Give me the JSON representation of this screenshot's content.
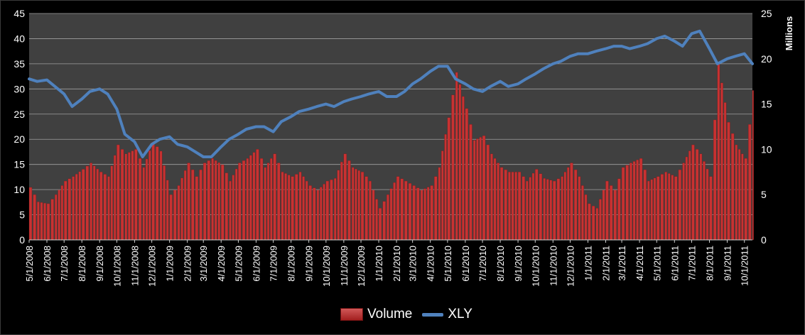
{
  "chart_data": {
    "type": "bar+line",
    "series": [
      {
        "name": "Volume",
        "type": "bar",
        "axis": "right",
        "color": "#c83232",
        "points": [
          [
            "5/1/2008",
            5.8
          ],
          [
            "5/15/2008",
            4.2
          ],
          [
            "6/1/2008",
            4.0
          ],
          [
            "6/15/2008",
            5.0
          ],
          [
            "7/1/2008",
            6.5
          ],
          [
            "7/15/2008",
            7.0
          ],
          [
            "8/1/2008",
            7.8
          ],
          [
            "8/15/2008",
            8.5
          ],
          [
            "9/1/2008",
            7.5
          ],
          [
            "9/15/2008",
            7.0
          ],
          [
            "10/1/2008",
            10.5
          ],
          [
            "10/15/2008",
            9.5
          ],
          [
            "11/1/2008",
            10.0
          ],
          [
            "11/15/2008",
            8.0
          ],
          [
            "12/1/2008",
            10.8
          ],
          [
            "12/15/2008",
            9.8
          ],
          [
            "1/1/2009",
            5.0
          ],
          [
            "1/15/2009",
            6.0
          ],
          [
            "2/1/2009",
            8.5
          ],
          [
            "2/15/2009",
            7.0
          ],
          [
            "3/1/2009",
            8.5
          ],
          [
            "3/15/2009",
            9.0
          ],
          [
            "4/1/2009",
            8.3
          ],
          [
            "4/15/2009",
            6.5
          ],
          [
            "5/1/2009",
            8.5
          ],
          [
            "5/15/2009",
            9.0
          ],
          [
            "6/1/2009",
            10.0
          ],
          [
            "6/15/2009",
            8.0
          ],
          [
            "7/1/2009",
            9.5
          ],
          [
            "7/15/2009",
            7.5
          ],
          [
            "8/1/2009",
            7.0
          ],
          [
            "8/15/2009",
            7.5
          ],
          [
            "9/1/2009",
            6.0
          ],
          [
            "9/15/2009",
            5.5
          ],
          [
            "10/1/2009",
            6.5
          ],
          [
            "10/15/2009",
            6.8
          ],
          [
            "11/1/2009",
            9.5
          ],
          [
            "11/15/2009",
            8.0
          ],
          [
            "12/1/2009",
            7.5
          ],
          [
            "12/15/2009",
            6.5
          ],
          [
            "1/1/2010",
            3.5
          ],
          [
            "1/15/2010",
            5.0
          ],
          [
            "2/1/2010",
            7.0
          ],
          [
            "2/15/2010",
            6.5
          ],
          [
            "3/1/2010",
            6.0
          ],
          [
            "3/15/2010",
            5.5
          ],
          [
            "4/1/2010",
            6.0
          ],
          [
            "4/15/2010",
            8.0
          ],
          [
            "5/1/2010",
            13.5
          ],
          [
            "5/15/2010",
            18.5
          ],
          [
            "6/1/2010",
            14.5
          ],
          [
            "6/15/2010",
            11.0
          ],
          [
            "7/1/2010",
            11.5
          ],
          [
            "7/15/2010",
            9.5
          ],
          [
            "8/1/2010",
            8.0
          ],
          [
            "8/15/2010",
            7.5
          ],
          [
            "9/1/2010",
            7.5
          ],
          [
            "9/15/2010",
            6.5
          ],
          [
            "10/1/2010",
            7.8
          ],
          [
            "10/15/2010",
            6.8
          ],
          [
            "11/1/2010",
            6.5
          ],
          [
            "11/15/2010",
            7.0
          ],
          [
            "12/1/2010",
            8.5
          ],
          [
            "12/15/2010",
            7.0
          ],
          [
            "1/1/2011",
            4.0
          ],
          [
            "1/15/2011",
            3.5
          ],
          [
            "2/1/2011",
            6.5
          ],
          [
            "2/15/2011",
            5.5
          ],
          [
            "3/1/2011",
            8.0
          ],
          [
            "3/15/2011",
            8.5
          ],
          [
            "4/1/2011",
            9.0
          ],
          [
            "4/15/2011",
            6.5
          ],
          [
            "5/1/2011",
            7.0
          ],
          [
            "5/15/2011",
            7.5
          ],
          [
            "6/1/2011",
            7.0
          ],
          [
            "6/15/2011",
            8.5
          ],
          [
            "7/1/2011",
            10.5
          ],
          [
            "7/15/2011",
            9.5
          ],
          [
            "8/1/2011",
            7.0
          ],
          [
            "8/15/2011",
            19.5
          ],
          [
            "9/1/2011",
            13.0
          ],
          [
            "9/15/2011",
            10.5
          ],
          [
            "10/1/2011",
            9.0
          ],
          [
            "10/15/2011",
            16.5
          ]
        ]
      },
      {
        "name": "XLY",
        "type": "line",
        "axis": "left",
        "color": "#4f81bd",
        "points": [
          [
            "5/1/2008",
            32
          ],
          [
            "5/15/2008",
            31.5
          ],
          [
            "6/1/2008",
            31.8
          ],
          [
            "6/15/2008",
            30.5
          ],
          [
            "7/1/2008",
            29.0
          ],
          [
            "7/15/2008",
            26.5
          ],
          [
            "8/1/2008",
            28.0
          ],
          [
            "8/15/2008",
            29.5
          ],
          [
            "9/1/2008",
            30.0
          ],
          [
            "9/15/2008",
            29.0
          ],
          [
            "10/1/2008",
            26.0
          ],
          [
            "10/15/2008",
            21.0
          ],
          [
            "11/1/2008",
            19.5
          ],
          [
            "11/15/2008",
            16.5
          ],
          [
            "12/1/2008",
            19.0
          ],
          [
            "12/15/2008",
            20.0
          ],
          [
            "1/1/2009",
            20.5
          ],
          [
            "1/15/2009",
            19.0
          ],
          [
            "2/1/2009",
            18.5
          ],
          [
            "2/15/2009",
            17.5
          ],
          [
            "3/1/2009",
            16.5
          ],
          [
            "3/15/2009",
            16.5
          ],
          [
            "4/1/2009",
            18.5
          ],
          [
            "4/15/2009",
            20.0
          ],
          [
            "5/1/2009",
            21.0
          ],
          [
            "5/15/2009",
            22.0
          ],
          [
            "6/1/2009",
            22.5
          ],
          [
            "6/15/2009",
            22.5
          ],
          [
            "7/1/2009",
            21.5
          ],
          [
            "7/15/2009",
            23.5
          ],
          [
            "8/1/2009",
            24.5
          ],
          [
            "8/15/2009",
            25.5
          ],
          [
            "9/1/2009",
            26.0
          ],
          [
            "9/15/2009",
            26.5
          ],
          [
            "10/1/2009",
            27.0
          ],
          [
            "10/15/2009",
            26.5
          ],
          [
            "11/1/2009",
            27.5
          ],
          [
            "11/15/2009",
            28.0
          ],
          [
            "12/1/2009",
            28.5
          ],
          [
            "12/15/2009",
            29.0
          ],
          [
            "1/1/2010",
            29.5
          ],
          [
            "1/15/2010",
            28.5
          ],
          [
            "2/1/2010",
            28.5
          ],
          [
            "2/15/2010",
            29.5
          ],
          [
            "3/1/2010",
            31.0
          ],
          [
            "3/15/2010",
            32.0
          ],
          [
            "4/1/2010",
            33.5
          ],
          [
            "4/15/2010",
            34.5
          ],
          [
            "5/1/2010",
            34.5
          ],
          [
            "5/15/2010",
            32.0
          ],
          [
            "6/1/2010",
            31.0
          ],
          [
            "6/15/2010",
            30.0
          ],
          [
            "7/1/2010",
            29.5
          ],
          [
            "7/15/2010",
            30.5
          ],
          [
            "8/1/2010",
            31.5
          ],
          [
            "8/15/2010",
            30.5
          ],
          [
            "9/1/2010",
            31.0
          ],
          [
            "9/15/2010",
            32.0
          ],
          [
            "10/1/2010",
            33.0
          ],
          [
            "10/15/2010",
            34.0
          ],
          [
            "11/1/2010",
            35.0
          ],
          [
            "11/15/2010",
            35.5
          ],
          [
            "12/1/2010",
            36.5
          ],
          [
            "12/15/2010",
            37.0
          ],
          [
            "1/1/2011",
            37.0
          ],
          [
            "1/15/2011",
            37.5
          ],
          [
            "2/1/2011",
            38.0
          ],
          [
            "2/15/2011",
            38.5
          ],
          [
            "3/1/2011",
            38.5
          ],
          [
            "3/15/2011",
            38.0
          ],
          [
            "4/1/2011",
            38.5
          ],
          [
            "4/15/2011",
            39.0
          ],
          [
            "5/1/2011",
            40.0
          ],
          [
            "5/15/2011",
            40.5
          ],
          [
            "6/1/2011",
            39.5
          ],
          [
            "6/15/2011",
            38.5
          ],
          [
            "7/1/2011",
            41.0
          ],
          [
            "7/15/2011",
            41.5
          ],
          [
            "8/1/2011",
            38.0
          ],
          [
            "8/15/2011",
            35.0
          ],
          [
            "9/1/2011",
            36.0
          ],
          [
            "9/15/2011",
            36.5
          ],
          [
            "10/1/2011",
            37.0
          ],
          [
            "10/15/2011",
            35.0
          ]
        ]
      }
    ],
    "y_left": {
      "min": 0,
      "max": 45,
      "ticks": [
        "0",
        "5",
        "10",
        "15",
        "20",
        "25",
        "30",
        "35",
        "40",
        "45"
      ]
    },
    "y_right": {
      "min": 0,
      "max": 25,
      "ticks": [
        "0",
        "5",
        "10",
        "15",
        "20",
        "25"
      ],
      "label": "Millions"
    },
    "x_ticks": [
      "5/1/2008",
      "6/1/2008",
      "7/1/2008",
      "8/1/2008",
      "9/1/2008",
      "10/1/2008",
      "11/1/2008",
      "12/1/2008",
      "1/1/2009",
      "2/1/2009",
      "3/1/2009",
      "4/1/2009",
      "5/1/2009",
      "6/1/2009",
      "7/1/2009",
      "8/1/2009",
      "9/1/2009",
      "10/1/2009",
      "11/1/2009",
      "12/1/2009",
      "1/1/2010",
      "2/1/2010",
      "3/1/2010",
      "4/1/2010",
      "5/1/2010",
      "6/1/2010",
      "7/1/2010",
      "8/1/2010",
      "9/1/2010",
      "10/1/2010",
      "11/1/2010",
      "12/1/2010",
      "1/1/2011",
      "2/1/2011",
      "3/1/2011",
      "4/1/2011",
      "5/1/2011",
      "6/1/2011",
      "7/1/2011",
      "8/1/2011",
      "9/1/2011",
      "10/1/2011"
    ],
    "x_range": [
      "5/1/2008",
      "10/15/2011"
    ],
    "grid": true,
    "legend_position": "bottom",
    "plot_background": "#404040"
  }
}
